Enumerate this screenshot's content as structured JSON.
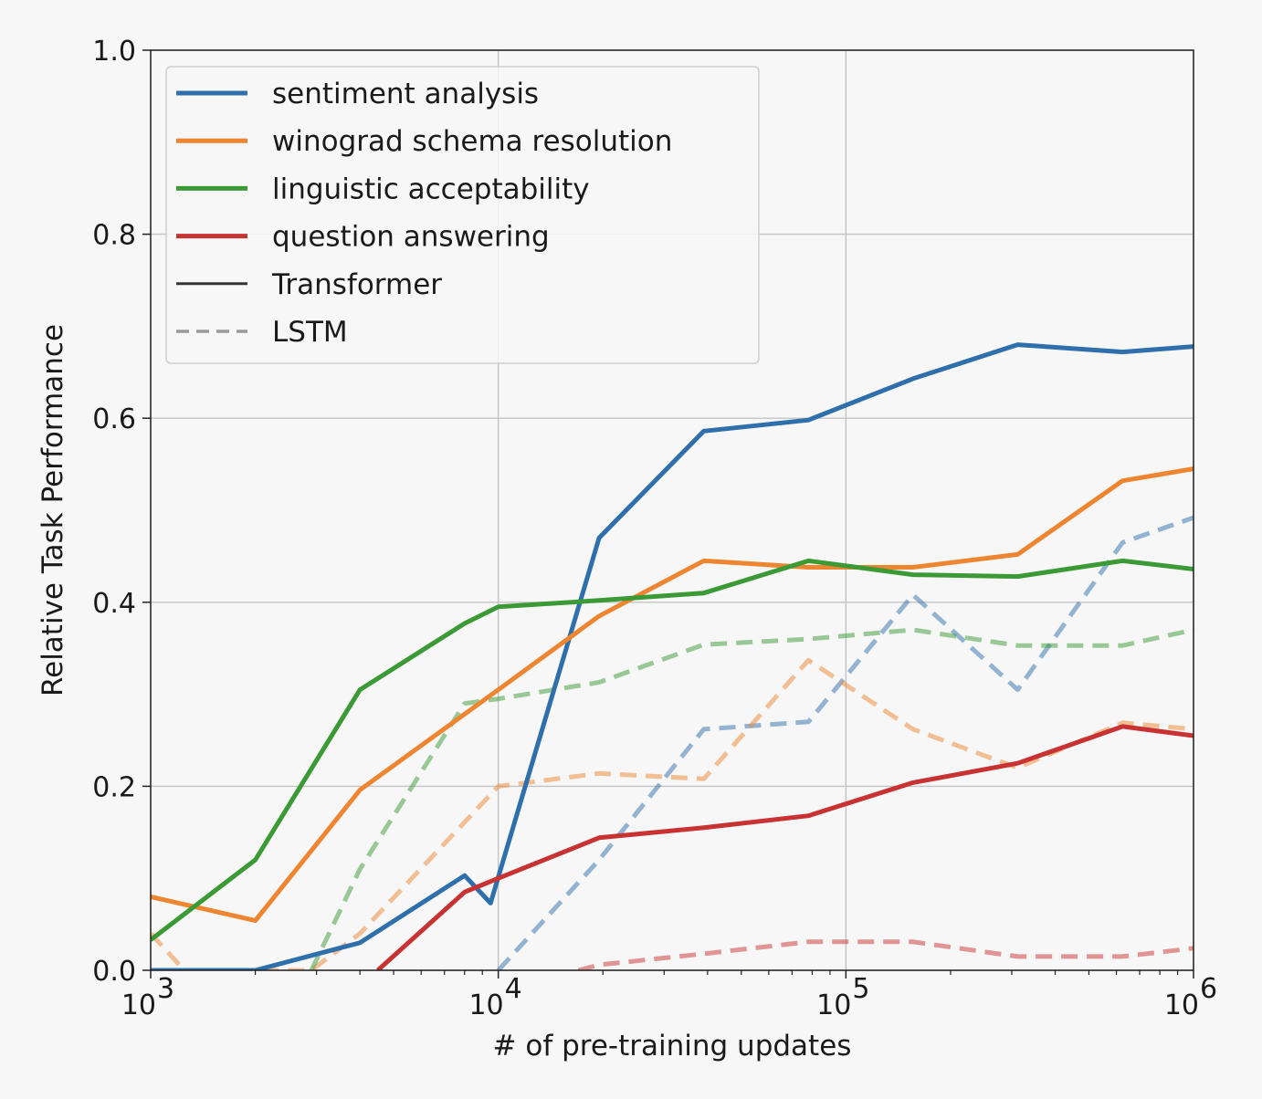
{
  "chart_data": {
    "type": "line",
    "title": "",
    "xlabel": "# of pre-training updates",
    "ylabel": "Relative Task Performance",
    "xscale": "log",
    "xlim": [
      1000,
      1000000
    ],
    "ylim": [
      0.0,
      1.0
    ],
    "grid": true,
    "legend_position": "top-left",
    "x_ticks": [
      {
        "value": 1000,
        "base": "10",
        "exp": "3"
      },
      {
        "value": 10000,
        "base": "10",
        "exp": "4"
      },
      {
        "value": 100000,
        "base": "10",
        "exp": "5"
      },
      {
        "value": 1000000,
        "base": "10",
        "exp": "6"
      }
    ],
    "y_ticks": [
      {
        "value": 0.0,
        "label": "0.0"
      },
      {
        "value": 0.2,
        "label": "0.2"
      },
      {
        "value": 0.4,
        "label": "0.4"
      },
      {
        "value": 0.6,
        "label": "0.6"
      },
      {
        "value": 0.8,
        "label": "0.8"
      },
      {
        "value": 1.0,
        "label": "1.0"
      }
    ],
    "legend": [
      {
        "label": "sentiment analysis",
        "color": "#2f6fac",
        "style": "solid"
      },
      {
        "label": "winograd schema resolution",
        "color": "#ee8531",
        "style": "solid"
      },
      {
        "label": "linguistic acceptability",
        "color": "#3b9a35",
        "style": "solid"
      },
      {
        "label": "question answering",
        "color": "#c93232",
        "style": "solid"
      },
      {
        "label": "Transformer",
        "color": "#333333",
        "style": "solid"
      },
      {
        "label": "LSTM",
        "color": "#9a9a9a",
        "style": "dashed"
      }
    ],
    "series": [
      {
        "task": "sentiment analysis",
        "model": "Transformer",
        "color": "#2f6fac",
        "style": "solid",
        "points": [
          [
            1000,
            0.0
          ],
          [
            2000,
            0.0
          ],
          [
            4000,
            0.03
          ],
          [
            8000,
            0.103
          ],
          [
            9500,
            0.073
          ],
          [
            19500,
            0.47
          ],
          [
            39000,
            0.586
          ],
          [
            78000,
            0.598
          ],
          [
            156000,
            0.643
          ],
          [
            312000,
            0.68
          ],
          [
            625000,
            0.672
          ],
          [
            1000000,
            0.678
          ]
        ]
      },
      {
        "task": "winograd schema resolution",
        "model": "Transformer",
        "color": "#ee8531",
        "style": "solid",
        "points": [
          [
            1000,
            0.08
          ],
          [
            2000,
            0.054
          ],
          [
            4000,
            0.196
          ],
          [
            10000,
            0.305
          ],
          [
            19500,
            0.385
          ],
          [
            39000,
            0.445
          ],
          [
            78000,
            0.438
          ],
          [
            156000,
            0.438
          ],
          [
            312000,
            0.452
          ],
          [
            625000,
            0.532
          ],
          [
            1000000,
            0.545
          ]
        ]
      },
      {
        "task": "linguistic acceptability",
        "model": "Transformer",
        "color": "#3b9a35",
        "style": "solid",
        "points": [
          [
            1000,
            0.033
          ],
          [
            2000,
            0.12
          ],
          [
            4000,
            0.305
          ],
          [
            8000,
            0.377
          ],
          [
            10000,
            0.395
          ],
          [
            19500,
            0.402
          ],
          [
            39000,
            0.41
          ],
          [
            78000,
            0.445
          ],
          [
            156000,
            0.43
          ],
          [
            312000,
            0.428
          ],
          [
            625000,
            0.445
          ],
          [
            1000000,
            0.436
          ]
        ]
      },
      {
        "task": "question answering",
        "model": "Transformer",
        "color": "#c93232",
        "style": "solid",
        "points": [
          [
            4500,
            0.0
          ],
          [
            8000,
            0.085
          ],
          [
            10000,
            0.1
          ],
          [
            19500,
            0.144
          ],
          [
            39000,
            0.155
          ],
          [
            78000,
            0.168
          ],
          [
            156000,
            0.204
          ],
          [
            312000,
            0.225
          ],
          [
            625000,
            0.265
          ],
          [
            1000000,
            0.255
          ]
        ]
      },
      {
        "task": "sentiment analysis",
        "model": "LSTM",
        "color": "#2f6fac",
        "style": "dashed",
        "points": [
          [
            10000,
            0.0
          ],
          [
            19500,
            0.12
          ],
          [
            39000,
            0.262
          ],
          [
            78000,
            0.27
          ],
          [
            156000,
            0.408
          ],
          [
            312000,
            0.305
          ],
          [
            625000,
            0.465
          ],
          [
            1000000,
            0.492
          ]
        ]
      },
      {
        "task": "winograd schema resolution",
        "model": "LSTM",
        "color": "#ee8531",
        "style": "dashed",
        "points": [
          [
            1000,
            0.04
          ],
          [
            1250,
            0.0
          ],
          [
            2900,
            0.0
          ],
          [
            4000,
            0.04
          ],
          [
            10000,
            0.2
          ],
          [
            19500,
            0.214
          ],
          [
            39000,
            0.208
          ],
          [
            78000,
            0.337
          ],
          [
            156000,
            0.262
          ],
          [
            312000,
            0.22
          ],
          [
            625000,
            0.269
          ],
          [
            1000000,
            0.262
          ]
        ]
      },
      {
        "task": "linguistic acceptability",
        "model": "LSTM",
        "color": "#3b9a35",
        "style": "dashed",
        "points": [
          [
            2900,
            0.0
          ],
          [
            4000,
            0.11
          ],
          [
            8000,
            0.29
          ],
          [
            10000,
            0.295
          ],
          [
            19500,
            0.313
          ],
          [
            39000,
            0.354
          ],
          [
            78000,
            0.36
          ],
          [
            156000,
            0.37
          ],
          [
            312000,
            0.353
          ],
          [
            625000,
            0.353
          ],
          [
            1000000,
            0.37
          ]
        ]
      },
      {
        "task": "question answering",
        "model": "LSTM",
        "color": "#c93232",
        "style": "dashed",
        "points": [
          [
            17000,
            0.0
          ],
          [
            19500,
            0.006
          ],
          [
            39000,
            0.018
          ],
          [
            78000,
            0.031
          ],
          [
            156000,
            0.031
          ],
          [
            312000,
            0.015
          ],
          [
            625000,
            0.015
          ],
          [
            1000000,
            0.024
          ]
        ]
      }
    ]
  }
}
